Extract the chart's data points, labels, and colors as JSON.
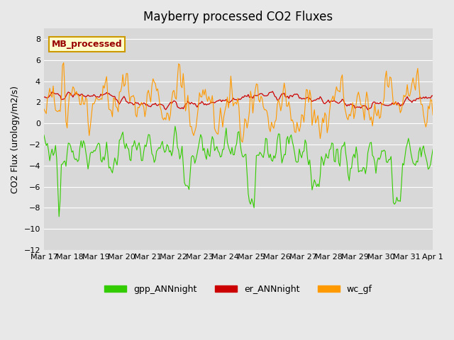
{
  "title": "Mayberry processed CO2 Fluxes",
  "ylabel": "CO2 Flux (urology/m2/s)",
  "ylim": [
    -12,
    9
  ],
  "yticks": [
    -12,
    -10,
    -8,
    -6,
    -4,
    -2,
    0,
    2,
    4,
    6,
    8
  ],
  "background_color": "#e8e8e8",
  "plot_bg_color": "#d8d8d8",
  "legend_label": "MB_processed",
  "legend_bg": "#ffffcc",
  "legend_edge": "#cc9900",
  "legend_text_color": "#990000",
  "series_colors": {
    "gpp_ANNnight": "#33cc00",
    "er_ANNnight": "#cc0000",
    "wc_gf": "#ff9900"
  },
  "n_points": 336,
  "seed": 42
}
